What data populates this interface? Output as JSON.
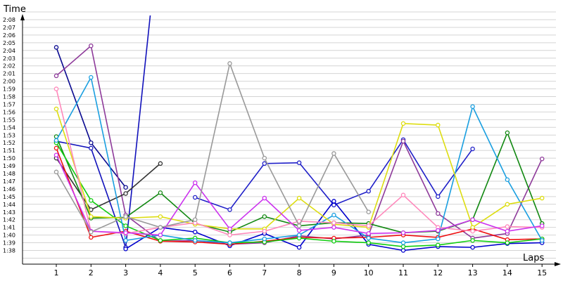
{
  "chart_data": {
    "type": "line",
    "xlabel": "Laps",
    "ylabel": "Time",
    "grid": true,
    "legend": "none",
    "x": [
      1,
      2,
      3,
      4,
      5,
      6,
      7,
      8,
      9,
      10,
      11,
      12,
      13,
      14,
      15
    ],
    "ylim_seconds": [
      97,
      129.5
    ],
    "ytick_labels": [
      "1:38",
      "1:39",
      "1:40",
      "1:41",
      "1:42",
      "1:43",
      "1:44",
      "1:45",
      "1:46",
      "1:47",
      "1:48",
      "1:49",
      "1:50",
      "1:51",
      "1:52",
      "1:53",
      "1:54",
      "1:55",
      "1:56",
      "1:57",
      "1:58",
      "1:59",
      "2:00",
      "2:01",
      "2:02",
      "2:03",
      "2:04",
      "2:05",
      "2:06",
      "2:07",
      "2:08"
    ],
    "xtick_labels": [
      "1",
      "2",
      "3",
      "4",
      "5",
      "6",
      "7",
      "8",
      "9",
      "10",
      "11",
      "12",
      "13",
      "14",
      "15"
    ],
    "series": [
      {
        "color": "#1111bb",
        "values": [
          112.2,
          111.3,
          98.4,
          141,
          141,
          null,
          null,
          null,
          null,
          null,
          null,
          null,
          null,
          null,
          null
        ]
      },
      {
        "color": "#1f1fc8",
        "values": [
          null,
          null,
          null,
          null,
          104.9,
          103.3,
          109.3,
          109.4,
          103.9,
          105.7,
          112.4,
          105.0,
          111.2,
          null,
          null
        ]
      },
      {
        "color": "#0a0a90",
        "values": [
          124.4,
          112.0,
          106.2,
          null,
          null,
          null,
          null,
          null,
          null,
          null,
          null,
          null,
          null,
          null,
          null
        ]
      },
      {
        "color": "#0000cc",
        "values": [
          null,
          null,
          98.2,
          101.0,
          100.4,
          98.6,
          100.2,
          98.4,
          104.4,
          98.8,
          98.0,
          98.5,
          98.4,
          98.9,
          99.0
        ]
      },
      {
        "color": "#8e3a9a",
        "values": [
          120.7,
          124.6,
          102.6,
          99.2,
          99.3,
          98.8,
          99.0,
          99.9,
          99.5,
          100.0,
          112.2,
          102.8,
          99.6,
          100.2,
          109.9
        ]
      },
      {
        "color": "#333333",
        "values": [
          110.0,
          103.3,
          105.4,
          109.3,
          null,
          null,
          null,
          null,
          null,
          null,
          null,
          null,
          null,
          null,
          null
        ]
      },
      {
        "color": "#ee1111",
        "values": [
          111.3,
          99.7,
          100.5,
          99.2,
          99.1,
          98.8,
          99.2,
          99.7,
          99.6,
          99.7,
          100.0,
          99.7,
          100.8,
          99.4,
          99.5
        ]
      },
      {
        "color": "#118811",
        "values": [
          112.8,
          102.2,
          102.3,
          105.5,
          101.5,
          100.4,
          102.4,
          101.2,
          101.6,
          101.5,
          100.3,
          100.5,
          102.0,
          113.3,
          101.5
        ]
      },
      {
        "color": "#11cc11",
        "values": [
          112.0,
          104.5,
          101.2,
          99.3,
          99.6,
          99.0,
          99.1,
          99.6,
          99.2,
          99.0,
          98.5,
          98.7,
          99.3,
          99.0,
          99.5
        ]
      },
      {
        "color": "#1a9fe0",
        "values": [
          112.3,
          120.5,
          99.3,
          100.0,
          99.3,
          99.0,
          99.5,
          100.0,
          102.6,
          99.6,
          99.0,
          99.5,
          116.7,
          107.2,
          99.3
        ]
      },
      {
        "color": "#dddd11",
        "values": [
          116.4,
          102.4,
          102.2,
          102.4,
          101.4,
          100.8,
          100.8,
          104.8,
          101.4,
          101.0,
          114.5,
          114.3,
          101.0,
          104.0,
          104.8
        ]
      },
      {
        "color": "#ff88bb",
        "values": [
          119.0,
          100.5,
          100.2,
          101.0,
          101.6,
          100.0,
          100.5,
          101.8,
          101.6,
          101.2,
          105.2,
          101.0,
          100.5,
          101.1,
          101.0
        ]
      },
      {
        "color": "#cc33ee",
        "values": [
          110.4,
          100.5,
          100.3,
          100.0,
          106.8,
          100.8,
          104.8,
          100.6,
          101.0,
          100.2,
          100.3,
          100.6,
          102.0,
          100.5,
          101.2
        ]
      },
      {
        "color": "#999999",
        "values": [
          108.2,
          100.4,
          102.4,
          101.0,
          102.0,
          122.3,
          110.0,
          101.2,
          110.6,
          103.0,
          null,
          null,
          null,
          null,
          null
        ]
      }
    ]
  }
}
